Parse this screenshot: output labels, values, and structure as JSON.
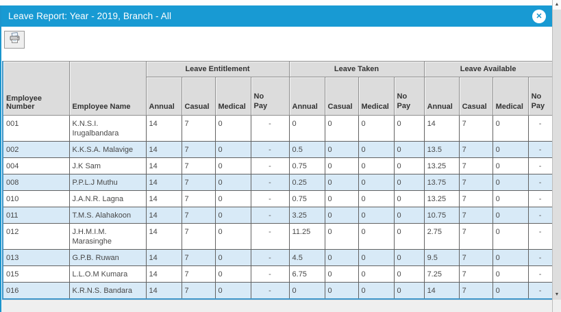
{
  "window": {
    "title": "Leave Report: Year - 2019, Branch - All",
    "close_glyph": "✕"
  },
  "toolbar": {
    "print_button_icon": "printer-icon"
  },
  "scrollbar": {
    "up_glyph": "▲",
    "down_glyph": "▼"
  },
  "colors": {
    "titlebar_blue": "#189AD3",
    "row_alt_blue": "#D8EAF7",
    "header_gray": "#DCDCDC",
    "grid_outer_blue": "#3C95C9"
  },
  "table": {
    "columns": [
      "Employee Number",
      "Employee Name"
    ],
    "groups": [
      "Leave Entitlement",
      "Leave Taken",
      "Leave Available"
    ],
    "sub_columns": [
      "Annual",
      "Casual",
      "Medical",
      "No Pay"
    ],
    "column_keys": [
      "employee-number",
      "employee-name",
      "entitlement-annual",
      "entitlement-casual",
      "entitlement-medical",
      "entitlement-no-pay",
      "taken-annual",
      "taken-casual",
      "taken-medical",
      "taken-no-pay",
      "available-annual",
      "available-casual",
      "available-medical",
      "available-no-pay"
    ],
    "rows": [
      [
        "001",
        "K.N.S.I. Irugalbandara",
        "14",
        "7",
        "0",
        "-",
        "0",
        "0",
        "0",
        "0",
        "14",
        "7",
        "0",
        "-"
      ],
      [
        "002",
        "K.K.S.A. Malavige",
        "14",
        "7",
        "0",
        "-",
        "0.5",
        "0",
        "0",
        "0",
        "13.5",
        "7",
        "0",
        "-"
      ],
      [
        "004",
        "J.K Sam",
        "14",
        "7",
        "0",
        "-",
        "0.75",
        "0",
        "0",
        "0",
        "13.25",
        "7",
        "0",
        "-"
      ],
      [
        "008",
        "P.P.L.J Muthu",
        "14",
        "7",
        "0",
        "-",
        "0.25",
        "0",
        "0",
        "0",
        "13.75",
        "7",
        "0",
        "-"
      ],
      [
        "010",
        "J.A.N.R. Lagna",
        "14",
        "7",
        "0",
        "-",
        "0.75",
        "0",
        "0",
        "0",
        "13.25",
        "7",
        "0",
        "-"
      ],
      [
        "011",
        "T.M.S. Alahakoon",
        "14",
        "7",
        "0",
        "-",
        "3.25",
        "0",
        "0",
        "0",
        "10.75",
        "7",
        "0",
        "-"
      ],
      [
        "012",
        "J.H.M.I.M. Marasinghe",
        "14",
        "7",
        "0",
        "-",
        "11.25",
        "0",
        "0",
        "0",
        "2.75",
        "7",
        "0",
        "-"
      ],
      [
        "013",
        "G.P.B. Ruwan",
        "14",
        "7",
        "0",
        "-",
        "4.5",
        "0",
        "0",
        "0",
        "9.5",
        "7",
        "0",
        "-"
      ],
      [
        "015",
        "L.L.O.M Kumara",
        "14",
        "7",
        "0",
        "-",
        "6.75",
        "0",
        "0",
        "0",
        "7.25",
        "7",
        "0",
        "-"
      ],
      [
        "016",
        "K.R.N.S. Bandara",
        "14",
        "7",
        "0",
        "-",
        "0",
        "0",
        "0",
        "0",
        "14",
        "7",
        "0",
        "-"
      ]
    ]
  }
}
